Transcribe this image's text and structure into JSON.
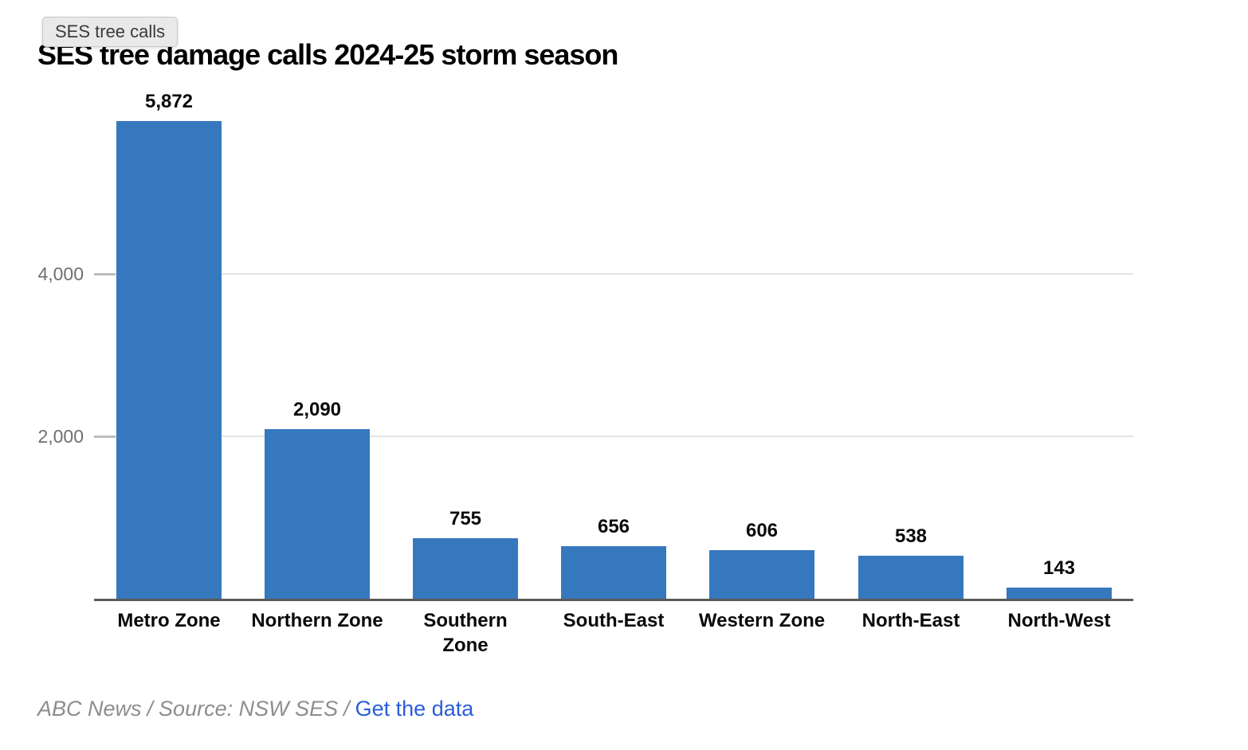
{
  "tooltip": {
    "label": "SES tree calls"
  },
  "header": {
    "title": "SES tree damage calls 2024-25 storm season"
  },
  "chart_data": {
    "type": "bar",
    "title": "SES tree damage calls 2024-25 storm season",
    "categories": [
      "Metro Zone",
      "Northern Zone",
      "Southern\nZone",
      "South-East",
      "Western Zone",
      "North-East",
      "North-West"
    ],
    "values": [
      5872,
      2090,
      755,
      656,
      606,
      538,
      143
    ],
    "value_labels": [
      "5,872",
      "2,090",
      "755",
      "656",
      "606",
      "538",
      "143"
    ],
    "xlabel": "",
    "ylabel": "",
    "ylim": [
      0,
      5872
    ],
    "yticks": [
      {
        "value": 2000,
        "label": "2,000"
      },
      {
        "value": 4000,
        "label": "4,000"
      }
    ],
    "grid": true,
    "legend_position": "none",
    "bar_color": "#3678be",
    "gridline_color": "#e3e3e3",
    "axis_line_color": "#5a5a57",
    "tick_label_color": "#6f6f6f"
  },
  "footer": {
    "credit": "ABC News",
    "separator": "/",
    "source": "Source: NSW SES",
    "link_label": "Get the data",
    "link_color": "#2b5dd7",
    "text_color": "#8d8d8d"
  }
}
